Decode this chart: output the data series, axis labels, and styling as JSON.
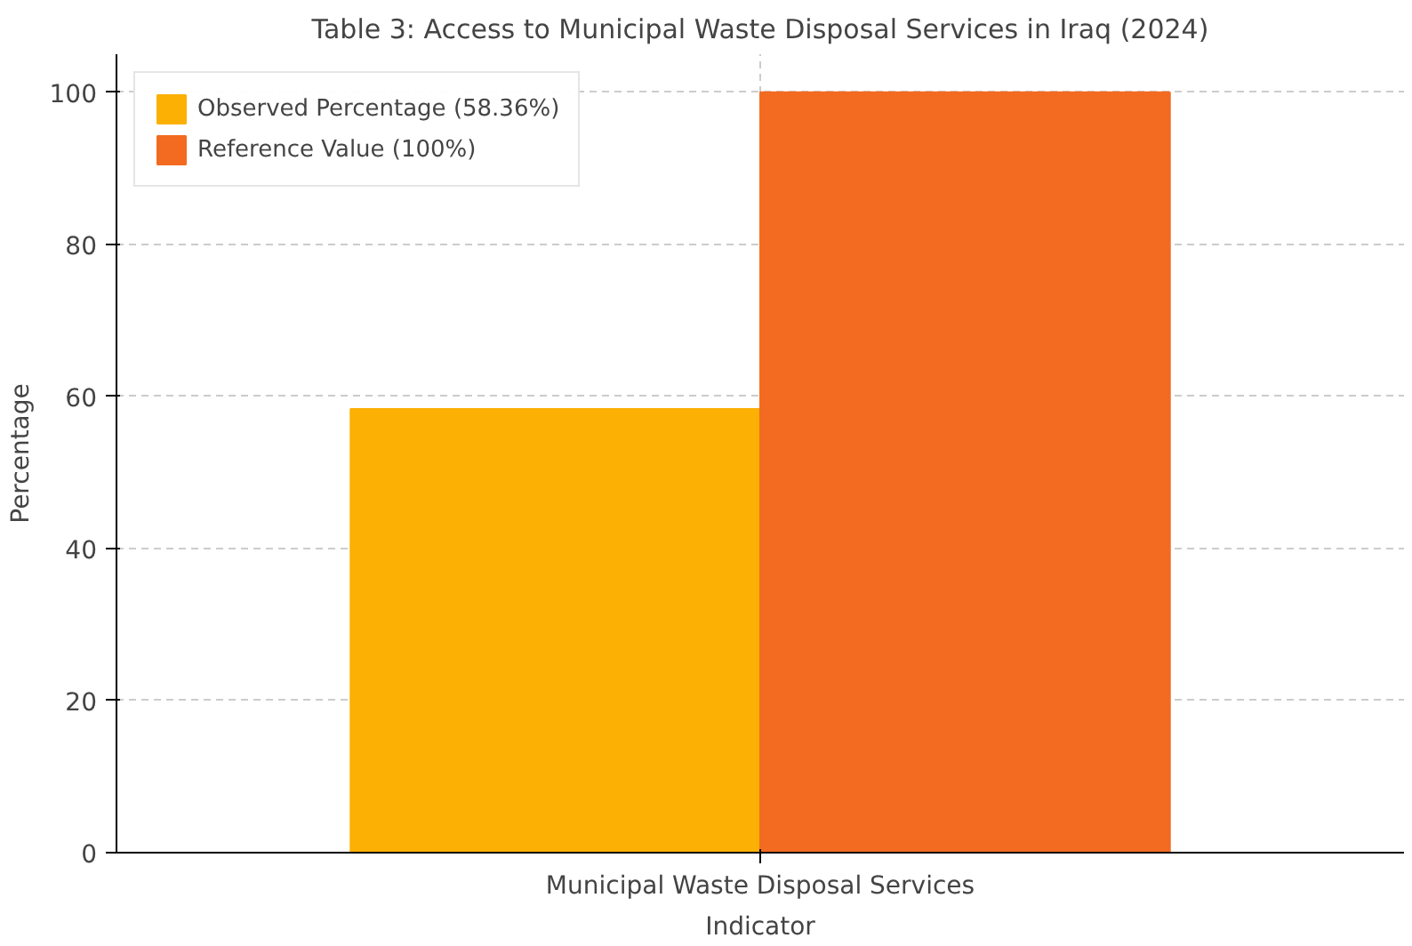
{
  "chart_data": {
    "type": "bar",
    "title": "Table 3: Access to Municipal Waste Disposal Services in Iraq (2024)",
    "xlabel": "Indicator",
    "ylabel": "Percentage",
    "categories": [
      "Municipal Waste Disposal Services"
    ],
    "series": [
      {
        "name": "Observed Percentage (58.36%)",
        "color": "#fbb003",
        "values": [
          58.36
        ]
      },
      {
        "name": "Reference Value (100%)",
        "color": "#f26b21",
        "values": [
          100
        ]
      }
    ],
    "ylim": [
      0,
      105
    ],
    "yticks": [
      0,
      20,
      40,
      60,
      80,
      100
    ],
    "grid": true,
    "legend": "top left"
  }
}
